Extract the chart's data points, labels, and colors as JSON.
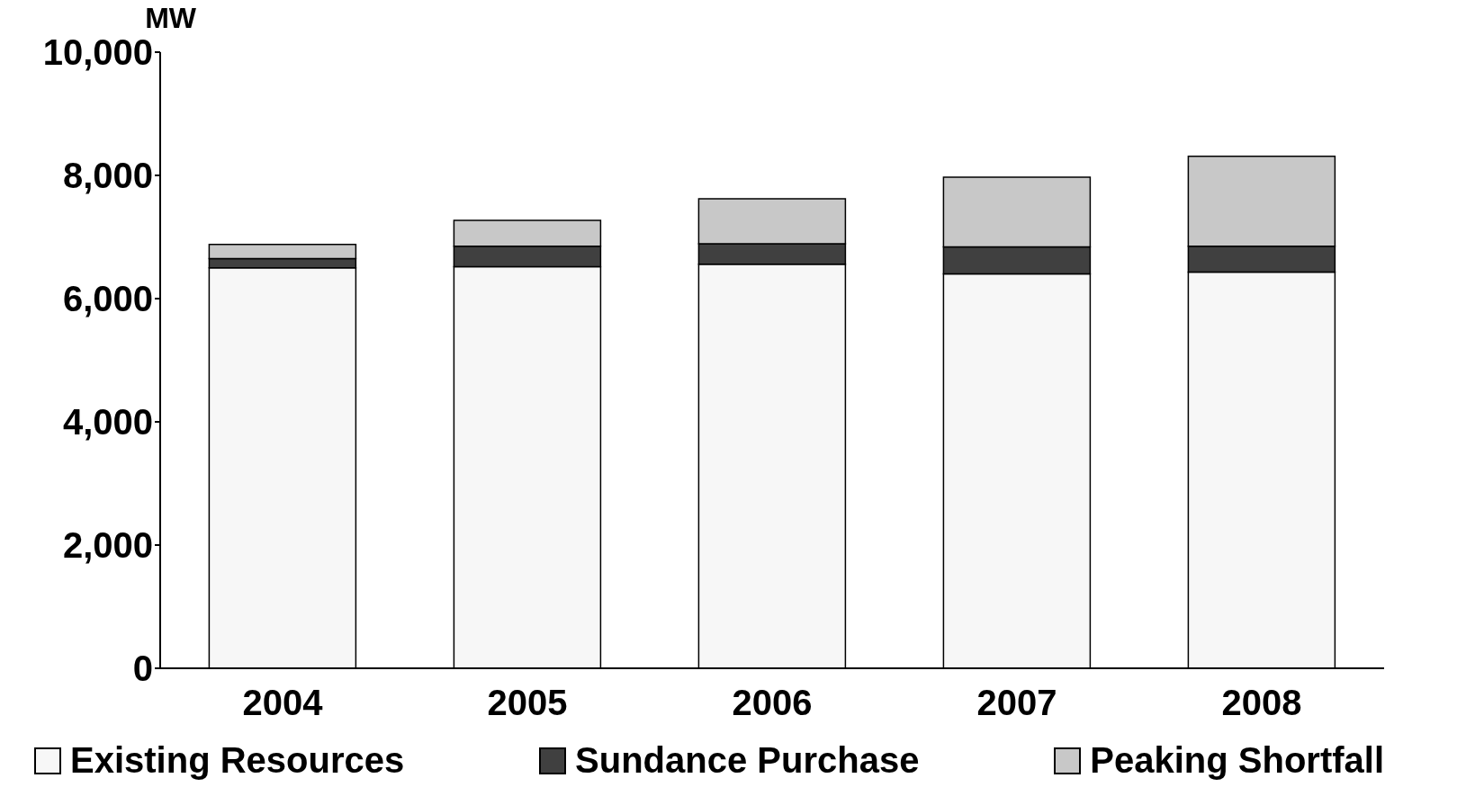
{
  "chart_data": {
    "type": "bar",
    "ylabel": "MW",
    "categories": [
      "2004",
      "2005",
      "2006",
      "2007",
      "2008"
    ],
    "stacked": true,
    "series": [
      {
        "name": "Existing Resources",
        "color": "#f7f7f7",
        "values": [
          6500,
          6520,
          6560,
          6400,
          6430
        ]
      },
      {
        "name": "Sundance Purchase",
        "color": "#404040",
        "values": [
          150,
          330,
          330,
          440,
          420
        ]
      },
      {
        "name": "Peaking Shortfall",
        "color": "#c8c8c8",
        "values": [
          230,
          420,
          730,
          1130,
          1460
        ]
      }
    ],
    "ylim": [
      0,
      10000
    ],
    "yticks": [
      0,
      {
        "value": 2000,
        "label": "2,000"
      },
      {
        "value": 4000,
        "label": "4,000"
      },
      {
        "value": 6000,
        "label": "6,000"
      },
      {
        "value": 8000,
        "label": "8,000"
      },
      {
        "value": 10000,
        "label": "10,000"
      }
    ],
    "grid": false,
    "legend": "bottom"
  }
}
